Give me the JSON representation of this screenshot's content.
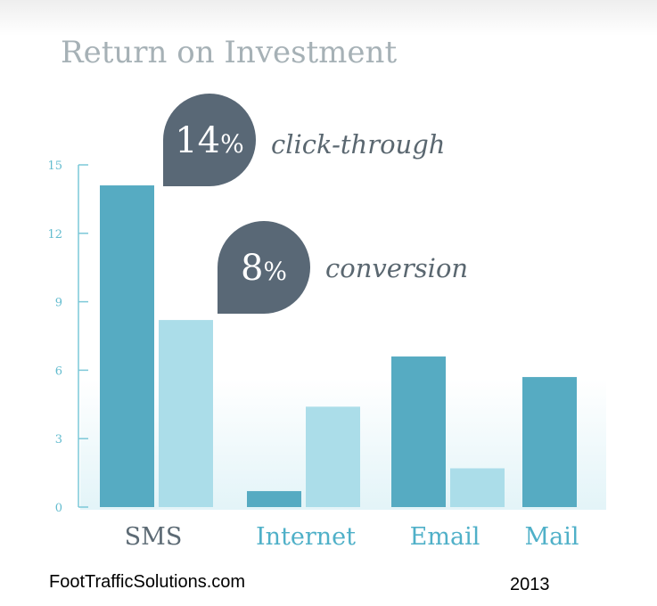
{
  "chart_data": {
    "type": "bar",
    "title": "Return on Investment",
    "categories": [
      "SMS",
      "Internet",
      "Email",
      "Mail"
    ],
    "series": [
      {
        "values": [
          14.1,
          0.7,
          6.6,
          5.7
        ]
      },
      {
        "values": [
          8.2,
          4.4,
          1.7,
          null
        ]
      }
    ],
    "ylim": [
      0,
      15
    ],
    "yticks": [
      "0",
      "3",
      "6",
      "9",
      "12",
      "15"
    ],
    "xlabel": "",
    "ylabel": "",
    "grid": false,
    "annotations": [
      {
        "value": "14%",
        "text": "click-through",
        "target_category": "SMS",
        "target_series": 0
      },
      {
        "value": "8%",
        "text": "conversion",
        "target_category": "SMS",
        "target_series": 1
      }
    ]
  },
  "colors": {
    "series_primary": "#56abc2",
    "series_secondary": "#abdde9",
    "axis": "#7cc8d8",
    "tick_text": "#63bccf",
    "category_sms": "#5c6a74",
    "category_other": "#4fb0c8",
    "bubble": "#596876",
    "title": "#a6b1b6",
    "bottom_glow": "#e3f4f8"
  },
  "footer": {
    "source": "FootTrafficSolutions.com",
    "year": "2013"
  }
}
